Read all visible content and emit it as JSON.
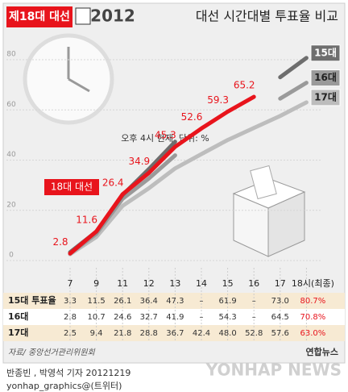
{
  "header": {
    "badge": "제18대 대선",
    "logo": "2012"
  },
  "chart_data": {
    "type": "line",
    "title": "대선 시간대별 투표율 비교",
    "annotation": "오후 4시 현재, 단위: %",
    "categories": [
      "7",
      "9",
      "11",
      "12",
      "13",
      "14",
      "15",
      "16",
      "17",
      "18시(최종)"
    ],
    "ylim": [
      0,
      80
    ],
    "yticks": [
      0,
      20,
      40,
      60,
      80
    ],
    "grid": true,
    "series": [
      {
        "name": "18대 대선",
        "color": "#e8141c",
        "values": [
          2.8,
          11.6,
          26.4,
          34.9,
          45.3,
          52.6,
          59.3,
          65.2,
          null,
          null
        ]
      },
      {
        "name": "15대",
        "color": "#6e6e6e",
        "values": [
          3.3,
          11.5,
          26.1,
          36.4,
          47.3,
          null,
          61.9,
          null,
          73.0,
          80.7
        ],
        "value_labels": [
          "3.3",
          "11.5",
          "26.1",
          "36.4",
          "47.3",
          "–",
          "61.9",
          "–",
          "73.0",
          "80.7%"
        ]
      },
      {
        "name": "16대",
        "color": "#9a9a9a",
        "values": [
          2.8,
          10.7,
          24.6,
          32.7,
          41.9,
          null,
          54.3,
          null,
          64.5,
          70.8
        ],
        "value_labels": [
          "2.8",
          "10.7",
          "24.6",
          "32.7",
          "41.9",
          "–",
          "54.3",
          "–",
          "64.5",
          "70.8%"
        ]
      },
      {
        "name": "17대",
        "color": "#bdbdbd",
        "values": [
          2.5,
          9.4,
          21.8,
          28.8,
          36.7,
          42.4,
          48.0,
          52.8,
          57.6,
          63.0
        ],
        "value_labels": [
          "2.5",
          "9.4",
          "21.8",
          "28.8",
          "36.7",
          "42.4",
          "48.0",
          "52.8",
          "57.6",
          "63.0%"
        ]
      }
    ],
    "table_labels": [
      "15대 투표율",
      "16대",
      "17대"
    ]
  },
  "source": "자료/ 중앙선거관리위원회",
  "agency": "연합뉴스",
  "credit": "반종빈 , 박영석 기자 20121219",
  "twitter": "yonhap_graphics@(트위터)",
  "watermark": "YONHAP NEWS"
}
